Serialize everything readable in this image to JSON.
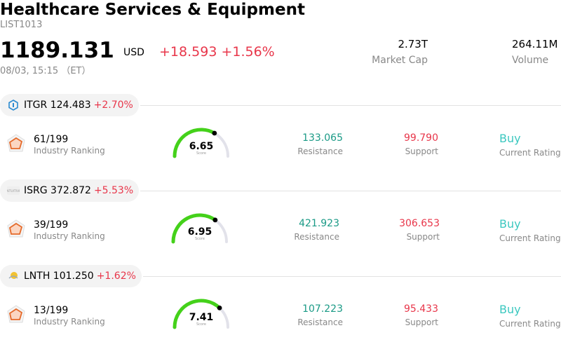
{
  "header": {
    "title": "Healthcare Services & Equipment",
    "code": "LIST1013",
    "price": "1189.131",
    "currency": "USD",
    "change": "+18.593",
    "change_pct": "+1.56%",
    "timestamp": "08/03, 15:15 （ET）",
    "market_cap_value": "2.73T",
    "market_cap_label": "Market Cap",
    "volume_value": "264.11M",
    "volume_label": "Volume"
  },
  "stocks": [
    {
      "ticker_price": "ITGR 124.483",
      "change_pct": "+2.70%",
      "logo_icon": "integra-logo-icon",
      "ranking": "61/199",
      "ranking_label": "Industry Ranking",
      "score": "6.65",
      "score_label": "Score",
      "score_fraction": 0.665,
      "resistance": "133.065",
      "resistance_label": "Resistance",
      "support": "99.790",
      "support_label": "Support",
      "rating": "Buy",
      "rating_label": "Current Rating"
    },
    {
      "ticker_price": "ISRG 372.872",
      "change_pct": "+5.53%",
      "logo_icon": "intuitive-logo-icon",
      "ranking": "39/199",
      "ranking_label": "Industry Ranking",
      "score": "6.95",
      "score_label": "Score",
      "score_fraction": 0.695,
      "resistance": "421.923",
      "resistance_label": "Resistance",
      "support": "306.653",
      "support_label": "Support",
      "rating": "Buy",
      "rating_label": "Current Rating"
    },
    {
      "ticker_price": "LNTH 101.250",
      "change_pct": "+1.62%",
      "logo_icon": "lantheus-logo-icon",
      "ranking": "13/199",
      "ranking_label": "Industry Ranking",
      "score": "7.41",
      "score_label": "Score",
      "score_fraction": 0.741,
      "resistance": "107.223",
      "resistance_label": "Resistance",
      "support": "95.433",
      "support_label": "Support",
      "rating": "Buy",
      "rating_label": "Current Rating"
    }
  ],
  "colors": {
    "up": "#e8364a",
    "resistance": "#1a9a86",
    "rating": "#3cc8c0",
    "gauge_fill": "#44d11a",
    "gauge_track": "#e2e2ea"
  }
}
